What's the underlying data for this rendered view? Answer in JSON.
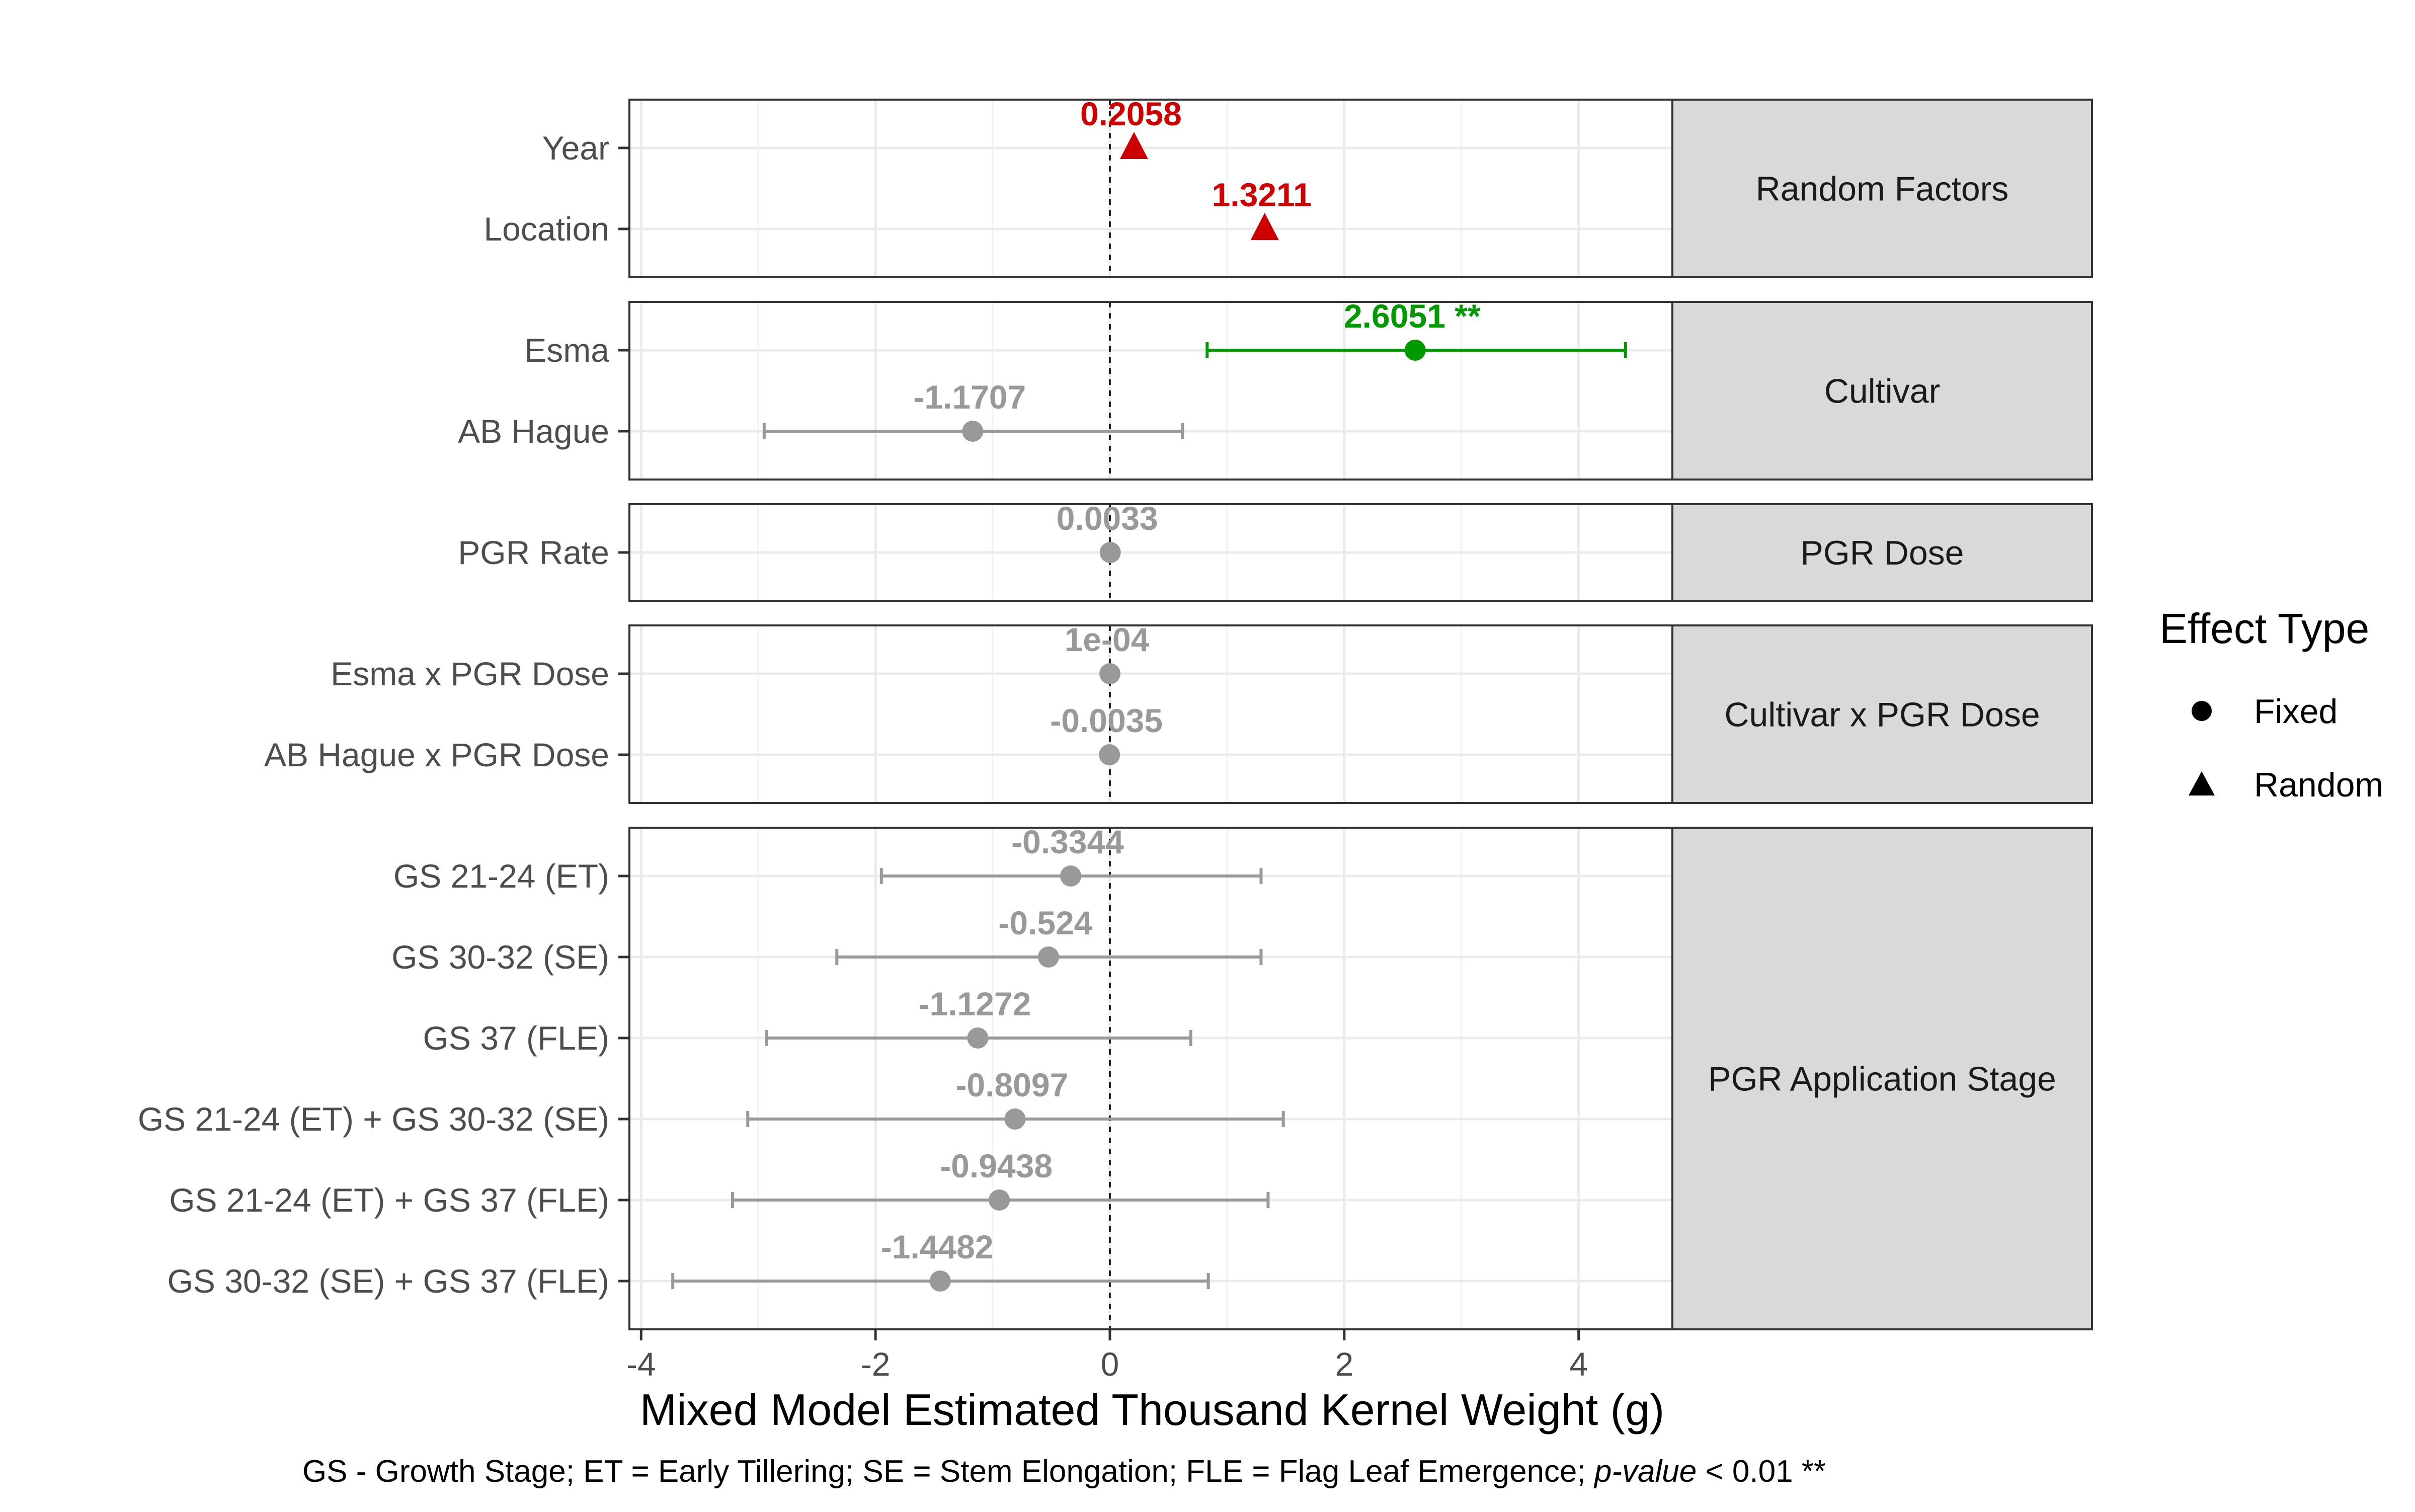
{
  "chart_data": {
    "type": "forest",
    "xlabel": "Mixed Model Estimated Thousand Kernel Weight (g)",
    "caption": {
      "before": "GS - Growth Stage; ET = Early Tillering; SE = Stem Elongation; FLE = Flag Leaf Emergence; ",
      "italic": "p-value",
      "after": " < 0.01 **"
    },
    "xlim": [
      -4.1,
      4.8
    ],
    "x_ticks": [
      -4,
      -2,
      0,
      2,
      4
    ],
    "reference_line": 0,
    "grid": true,
    "legend": {
      "title": "Effect Type",
      "position": "right",
      "entries": [
        {
          "label": "Fixed",
          "shape": "circle"
        },
        {
          "label": "Random",
          "shape": "triangle"
        }
      ]
    },
    "colors": {
      "random": "#CC0000",
      "significant": "#009900",
      "nonsignificant": "#999999"
    },
    "panels": [
      {
        "strip": "Random Factors",
        "rows": [
          {
            "term": "Year",
            "estimate": 0.2058,
            "label": "0.2058",
            "type": "Random",
            "status": "random"
          },
          {
            "term": "Location",
            "estimate": 1.3211,
            "label": "1.3211",
            "type": "Random",
            "status": "random"
          }
        ]
      },
      {
        "strip": "Cultivar",
        "rows": [
          {
            "term": "Esma",
            "estimate": 2.6051,
            "lower": 0.83,
            "upper": 4.4,
            "label": "2.6051 **",
            "type": "Fixed",
            "status": "significant"
          },
          {
            "term": "AB Hague",
            "estimate": -1.1707,
            "lower": -2.95,
            "upper": 0.62,
            "label": "-1.1707",
            "type": "Fixed",
            "status": "nonsignificant"
          }
        ]
      },
      {
        "strip": "PGR Dose",
        "rows": [
          {
            "term": "PGR Rate",
            "estimate": 0.0033,
            "label": "0.0033",
            "type": "Fixed",
            "status": "nonsignificant"
          }
        ]
      },
      {
        "strip": "Cultivar x PGR Dose",
        "rows": [
          {
            "term": "Esma x PGR Dose",
            "estimate": 0.0001,
            "label": "1e-04",
            "type": "Fixed",
            "status": "nonsignificant"
          },
          {
            "term": "AB Hague x PGR Dose",
            "estimate": -0.0035,
            "label": "-0.0035",
            "type": "Fixed",
            "status": "nonsignificant"
          }
        ]
      },
      {
        "strip": "PGR Application Stage",
        "rows": [
          {
            "term": "GS 21-24 (ET)",
            "estimate": -0.3344,
            "lower": -1.95,
            "upper": 1.29,
            "label": "-0.3344",
            "type": "Fixed",
            "status": "nonsignificant"
          },
          {
            "term": "GS 30-32 (SE)",
            "estimate": -0.524,
            "lower": -2.33,
            "upper": 1.29,
            "label": "-0.524",
            "type": "Fixed",
            "status": "nonsignificant"
          },
          {
            "term": "GS 37 (FLE)",
            "estimate": -1.1272,
            "lower": -2.93,
            "upper": 0.69,
            "label": "-1.1272",
            "type": "Fixed",
            "status": "nonsignificant"
          },
          {
            "term": "GS 21-24 (ET) + GS 30-32 (SE)",
            "estimate": -0.8097,
            "lower": -3.09,
            "upper": 1.48,
            "label": "-0.8097",
            "type": "Fixed",
            "status": "nonsignificant"
          },
          {
            "term": "GS 21-24 (ET) + GS 37 (FLE)",
            "estimate": -0.9438,
            "lower": -3.22,
            "upper": 1.35,
            "label": "-0.9438",
            "type": "Fixed",
            "status": "nonsignificant"
          },
          {
            "term": "GS 30-32 (SE) + GS 37 (FLE)",
            "estimate": -1.4482,
            "lower": -3.73,
            "upper": 0.84,
            "label": "-1.4482",
            "type": "Fixed",
            "status": "nonsignificant"
          }
        ]
      }
    ]
  }
}
